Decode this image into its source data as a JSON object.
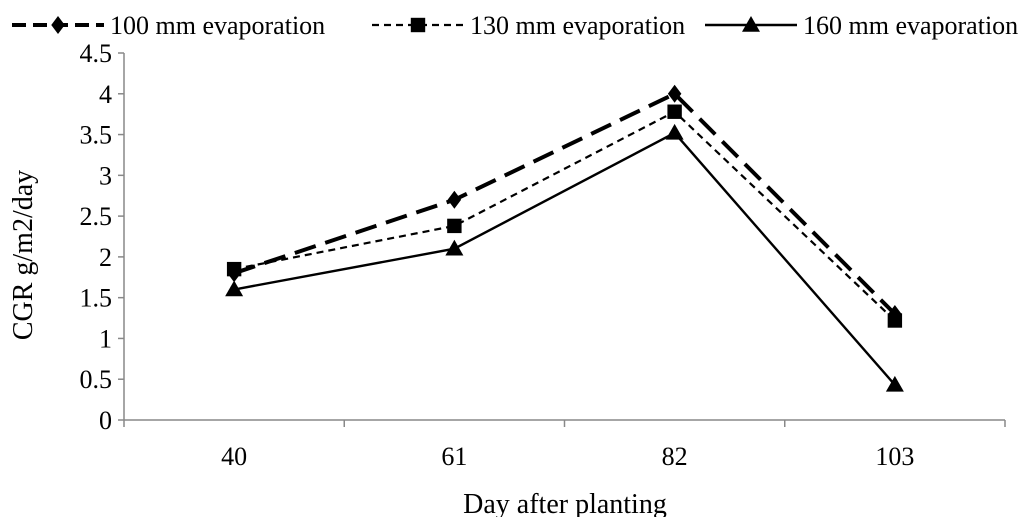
{
  "chart_data": {
    "type": "line",
    "title": "",
    "xlabel": "Day after planting",
    "ylabel": "CGR g/m2/day",
    "categories": [
      "40",
      "61",
      "82",
      "103"
    ],
    "ylim": [
      0,
      4.5
    ],
    "yticks": [
      "0",
      "0.5",
      "1",
      "1.5",
      "2",
      "2.5",
      "3",
      "3.5",
      "4",
      "4.5"
    ],
    "grid": false,
    "legend_position": "top",
    "series": [
      {
        "name": "100 mm evaporation",
        "values": [
          1.8,
          2.7,
          4.0,
          1.3
        ],
        "marker": "diamond",
        "line_style": "long-dash",
        "color": "#000000"
      },
      {
        "name": "130 mm evaporation",
        "values": [
          1.85,
          2.38,
          3.78,
          1.22
        ],
        "marker": "square",
        "line_style": "short-dash",
        "color": "#000000"
      },
      {
        "name": "160 mm evaporation",
        "values": [
          1.6,
          2.1,
          3.52,
          0.43
        ],
        "marker": "triangle",
        "line_style": "solid",
        "color": "#000000"
      }
    ]
  }
}
